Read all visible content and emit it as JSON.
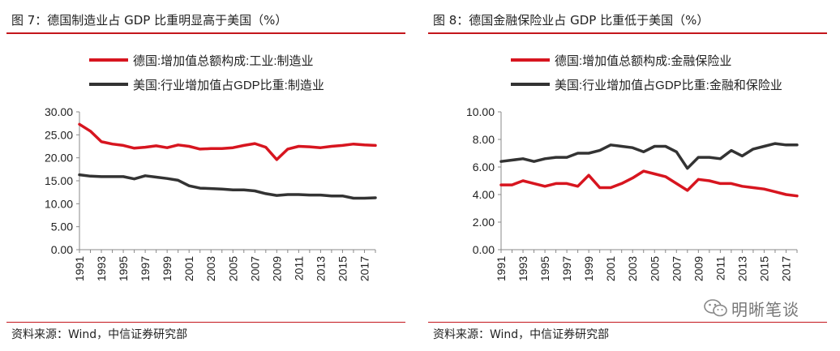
{
  "panels": [
    {
      "title": "图 7：德国制造业占 GDP 比重明显高于美国（%）",
      "source": "资料来源：Wind，中信证券研究部"
    },
    {
      "title": "图 8：德国金融保险业占 GDP 比重低于美国（%）",
      "source": "资料来源：Wind，中信证券研究部"
    }
  ],
  "watermark": {
    "text": "明晰笔谈",
    "icon": "wechat-icon"
  },
  "colors": {
    "red": "#d7151f",
    "dark": "#333333",
    "accent": "#c4161c"
  },
  "chart_data": [
    {
      "type": "line",
      "x": [
        1991,
        1992,
        1993,
        1994,
        1995,
        1996,
        1997,
        1998,
        1999,
        2000,
        2001,
        2002,
        2003,
        2004,
        2005,
        2006,
        2007,
        2008,
        2009,
        2010,
        2011,
        2012,
        2013,
        2014,
        2015,
        2016,
        2017,
        2018
      ],
      "xticks": [
        "1991",
        "1993",
        "1995",
        "1997",
        "1999",
        "2001",
        "2003",
        "2005",
        "2007",
        "2009",
        "2011",
        "2013",
        "2015",
        "2017"
      ],
      "ylim": [
        0,
        30
      ],
      "yticks": [
        "0.00",
        "5.00",
        "10.00",
        "15.00",
        "20.00",
        "25.00",
        "30.00"
      ],
      "grid": false,
      "legend": "top",
      "series": [
        {
          "name": "德国:增加值总额构成:工业:制造业",
          "color": "#d7151f",
          "values": [
            27.3,
            25.8,
            23.5,
            23.0,
            22.7,
            22.1,
            22.3,
            22.6,
            22.2,
            22.8,
            22.5,
            21.9,
            22.0,
            22.0,
            22.2,
            22.7,
            23.1,
            22.3,
            19.6,
            21.9,
            22.5,
            22.4,
            22.2,
            22.5,
            22.7,
            23.0,
            22.8,
            22.7
          ]
        },
        {
          "name": "美国:行业增加值占GDP比重:制造业",
          "color": "#333333",
          "values": [
            16.3,
            16.0,
            15.9,
            15.9,
            15.9,
            15.4,
            16.1,
            15.8,
            15.5,
            15.1,
            13.9,
            13.4,
            13.3,
            13.2,
            13.0,
            13.0,
            12.8,
            12.2,
            11.8,
            12.0,
            12.0,
            11.9,
            11.9,
            11.7,
            11.7,
            11.2,
            11.2,
            11.3
          ]
        }
      ]
    },
    {
      "type": "line",
      "x": [
        1991,
        1992,
        1993,
        1994,
        1995,
        1996,
        1997,
        1998,
        1999,
        2000,
        2001,
        2002,
        2003,
        2004,
        2005,
        2006,
        2007,
        2008,
        2009,
        2010,
        2011,
        2012,
        2013,
        2014,
        2015,
        2016,
        2017,
        2018
      ],
      "xticks": [
        "1991",
        "1993",
        "1995",
        "1997",
        "1999",
        "2001",
        "2003",
        "2005",
        "2007",
        "2009",
        "2011",
        "2013",
        "2015",
        "2017"
      ],
      "ylim": [
        0,
        10
      ],
      "yticks": [
        "0.00",
        "2.00",
        "4.00",
        "6.00",
        "8.00",
        "10.00"
      ],
      "grid": false,
      "legend": "top",
      "series": [
        {
          "name": "德国:增加值总额构成:金融保险业",
          "color": "#d7151f",
          "values": [
            4.7,
            4.7,
            5.0,
            4.8,
            4.6,
            4.8,
            4.8,
            4.6,
            5.4,
            4.5,
            4.5,
            4.8,
            5.2,
            5.7,
            5.5,
            5.3,
            4.8,
            4.3,
            5.1,
            5.0,
            4.8,
            4.8,
            4.6,
            4.5,
            4.4,
            4.2,
            4.0,
            3.9
          ]
        },
        {
          "name": "美国:行业增加值占GDP比重:金融和保险业",
          "color": "#333333",
          "values": [
            6.4,
            6.5,
            6.6,
            6.4,
            6.6,
            6.7,
            6.7,
            7.0,
            7.0,
            7.2,
            7.6,
            7.5,
            7.4,
            7.1,
            7.5,
            7.5,
            7.1,
            5.9,
            6.7,
            6.7,
            6.6,
            7.2,
            6.8,
            7.3,
            7.5,
            7.7,
            7.6,
            7.6
          ]
        }
      ]
    }
  ]
}
